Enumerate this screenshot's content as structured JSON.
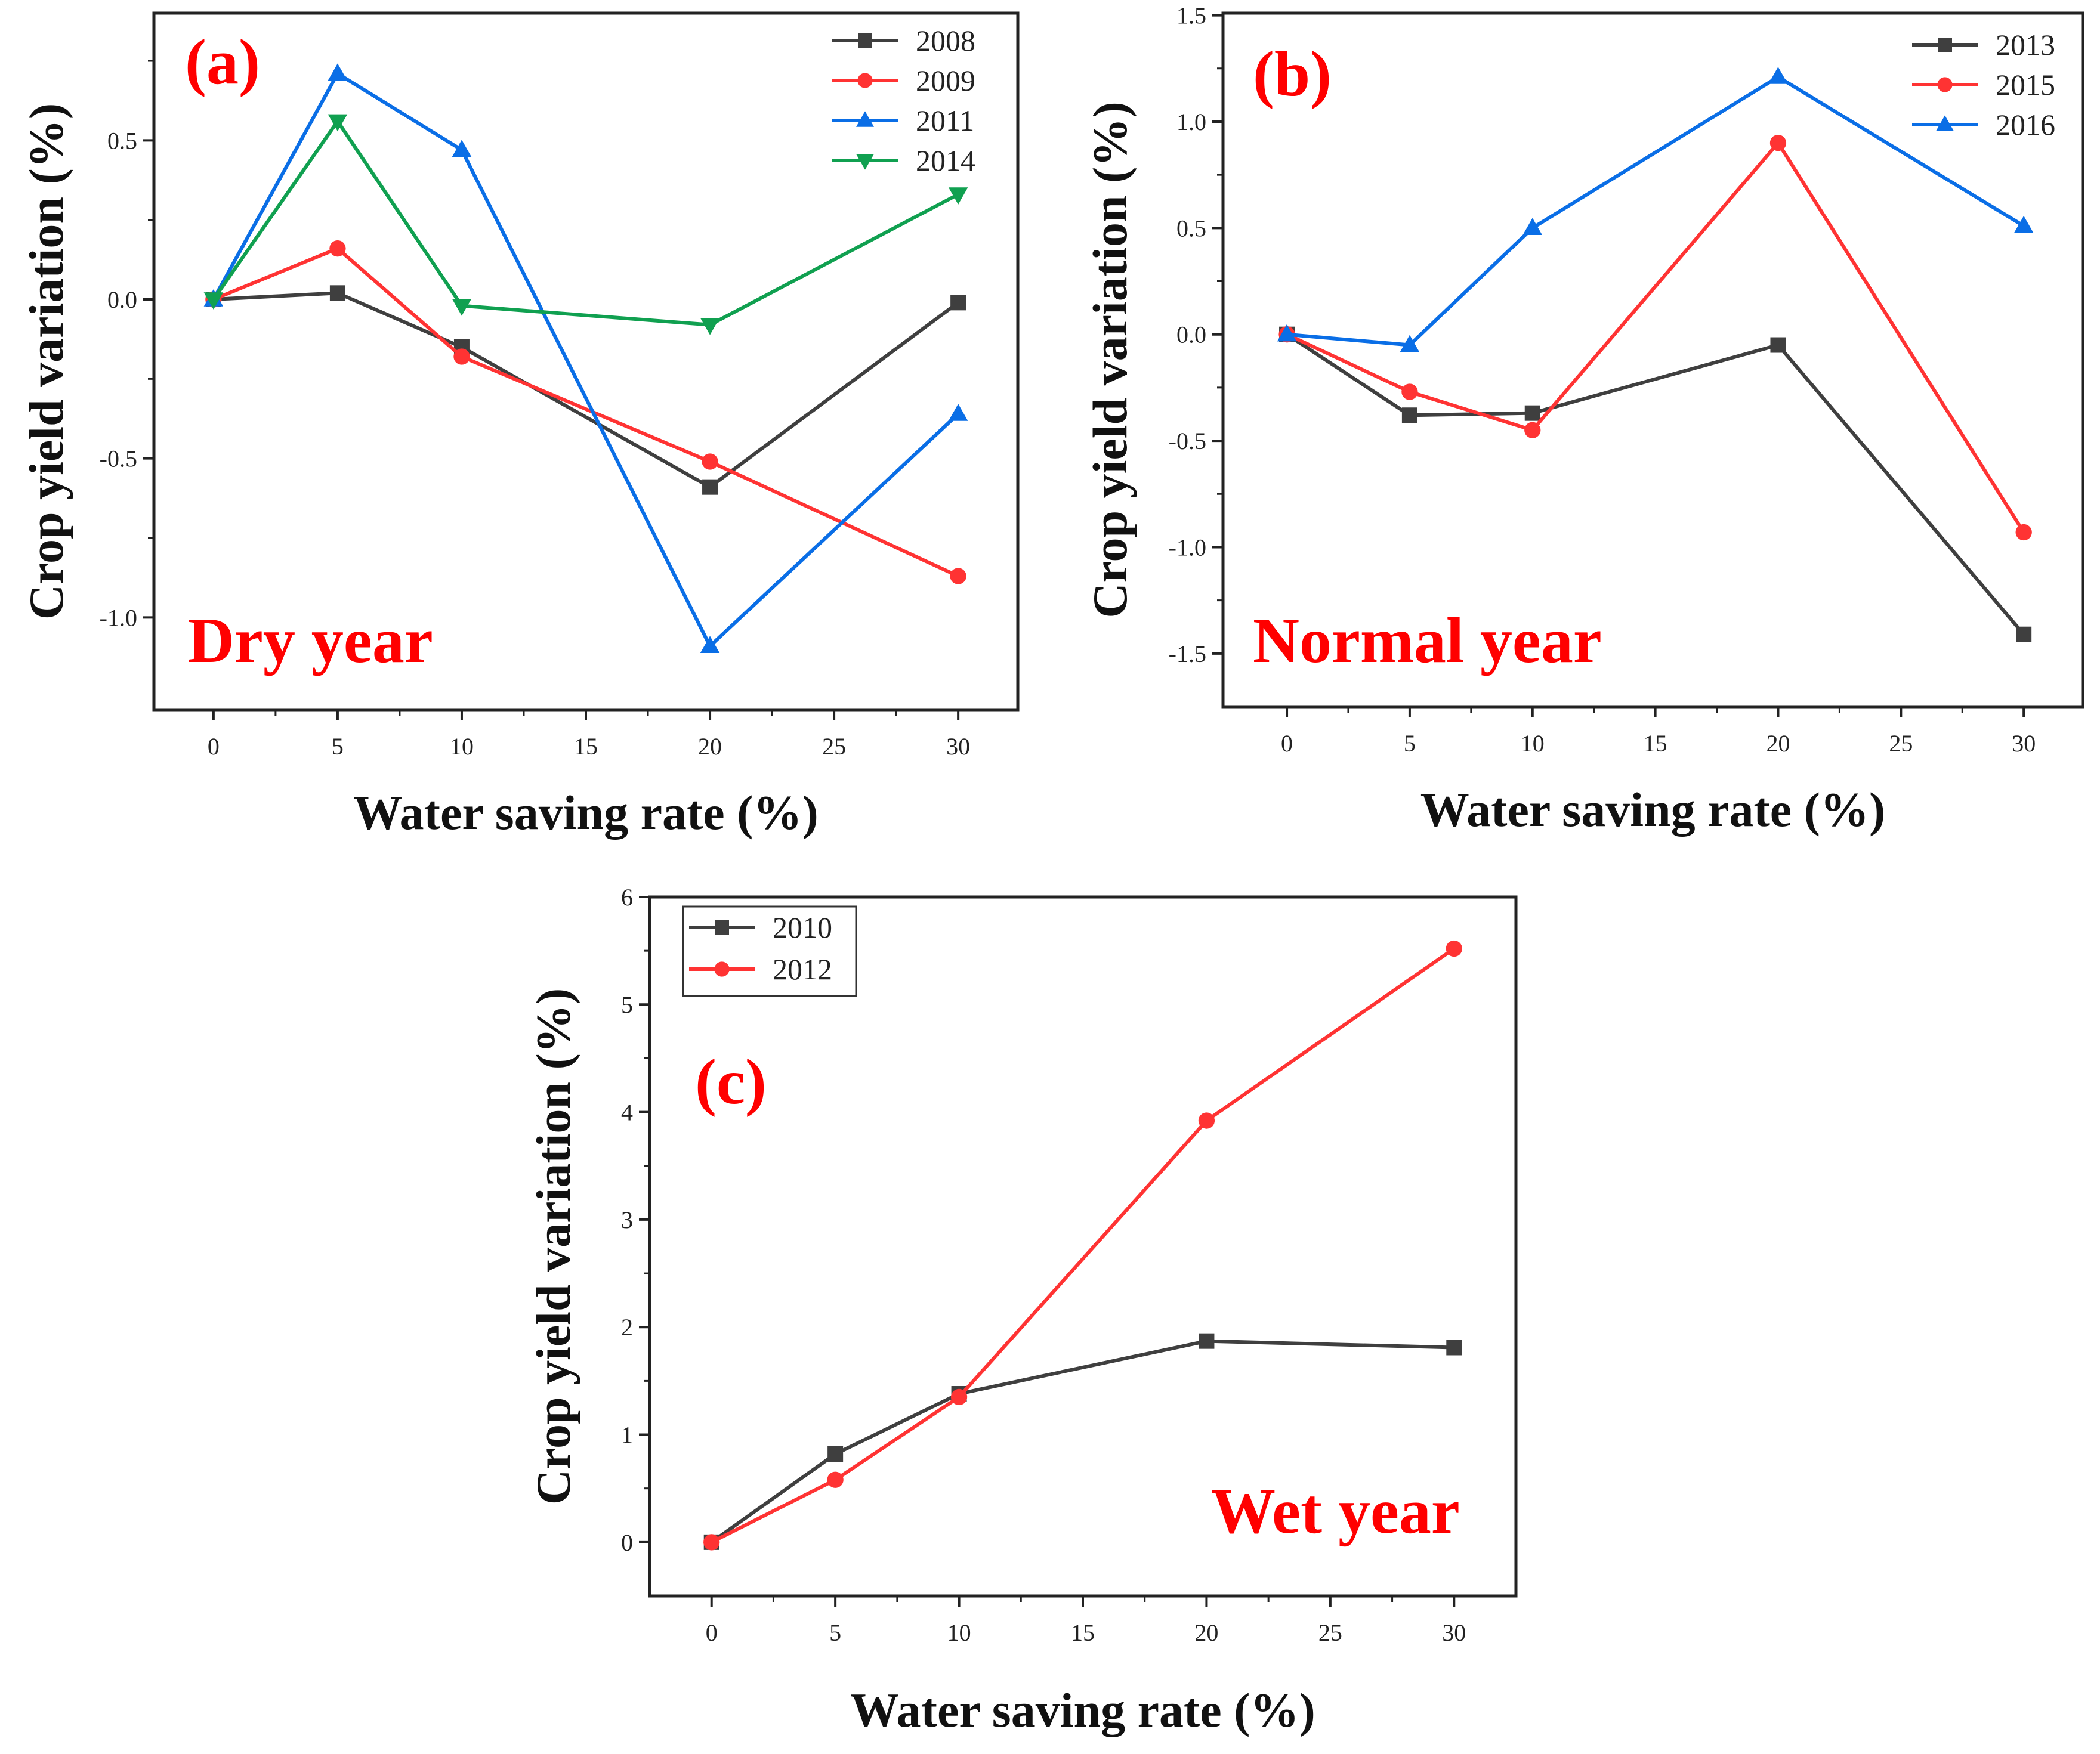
{
  "chart_data": [
    {
      "type": "line",
      "panel_label": "(a)",
      "annotation": "Dry year",
      "xlabel": "Water saving rate (%)",
      "ylabel": "Crop yield variation (%)",
      "x": [
        0,
        5,
        10,
        20,
        30
      ],
      "xlim": [
        -2.4,
        32.4
      ],
      "ylim": [
        -1.29,
        0.9
      ],
      "xticks": [
        0,
        5,
        10,
        15,
        20,
        25,
        30
      ],
      "yticks": [
        -1.0,
        -0.5,
        0.0,
        0.5
      ],
      "ytick_labels": [
        "-1.0",
        "-0.5",
        "0.0",
        "0.5"
      ],
      "legend_position": "top-right",
      "series": [
        {
          "name": "2008",
          "color": "#3f3f3f",
          "marker": "square",
          "values": [
            0,
            0.02,
            -0.15,
            -0.59,
            -0.01
          ]
        },
        {
          "name": "2009",
          "color": "#ff3333",
          "marker": "circle",
          "values": [
            0,
            0.16,
            -0.18,
            -0.51,
            -0.87
          ]
        },
        {
          "name": "2011",
          "color": "#0a6ee6",
          "marker": "triangle-up",
          "values": [
            0,
            0.71,
            0.47,
            -1.09,
            -0.36
          ]
        },
        {
          "name": "2014",
          "color": "#10a050",
          "marker": "triangle-down",
          "values": [
            0,
            0.56,
            -0.02,
            -0.08,
            0.33
          ]
        }
      ]
    },
    {
      "type": "line",
      "panel_label": "(b)",
      "annotation": "Normal year",
      "xlabel": "Water saving rate (%)",
      "ylabel": "Crop yield variation (%)",
      "x": [
        0,
        5,
        10,
        20,
        30
      ],
      "xlim": [
        -2.6,
        32.4
      ],
      "ylim": [
        -1.75,
        1.51
      ],
      "xticks": [
        0,
        5,
        10,
        15,
        20,
        25,
        30
      ],
      "yticks": [
        -1.5,
        -1.0,
        -0.5,
        0.0,
        0.5,
        1.0,
        1.5
      ],
      "ytick_labels": [
        "-1.5",
        "-1.0",
        "-0.5",
        "0.0",
        "0.5",
        "1.0",
        "1.5"
      ],
      "legend_position": "top-right",
      "series": [
        {
          "name": "2013",
          "color": "#3f3f3f",
          "marker": "square",
          "values": [
            0,
            -0.38,
            -0.37,
            -0.05,
            -1.41
          ]
        },
        {
          "name": "2015",
          "color": "#ff3333",
          "marker": "circle",
          "values": [
            0,
            -0.27,
            -0.45,
            0.9,
            -0.93
          ]
        },
        {
          "name": "2016",
          "color": "#0a6ee6",
          "marker": "triangle-up",
          "values": [
            0,
            -0.05,
            0.5,
            1.21,
            0.51
          ]
        }
      ]
    },
    {
      "type": "line",
      "panel_label": "(c)",
      "annotation": "Wet year",
      "xlabel": "Water saving rate (%)",
      "ylabel": "Crop yield variation (%)",
      "x": [
        0,
        5,
        10,
        20,
        30
      ],
      "xlim": [
        -2.5,
        32.5
      ],
      "ylim": [
        -0.5,
        6
      ],
      "xticks": [
        0,
        5,
        10,
        15,
        20,
        25,
        30
      ],
      "yticks": [
        0,
        1,
        2,
        3,
        4,
        5,
        6
      ],
      "ytick_labels": [
        "0",
        "1",
        "2",
        "3",
        "4",
        "5",
        "6"
      ],
      "legend_position": "top-left",
      "series": [
        {
          "name": "2010",
          "color": "#3f3f3f",
          "marker": "square",
          "values": [
            0,
            0.82,
            1.38,
            1.87,
            1.81
          ]
        },
        {
          "name": "2012",
          "color": "#ff3333",
          "marker": "circle",
          "values": [
            0,
            0.58,
            1.35,
            3.92,
            5.52
          ]
        }
      ]
    }
  ]
}
